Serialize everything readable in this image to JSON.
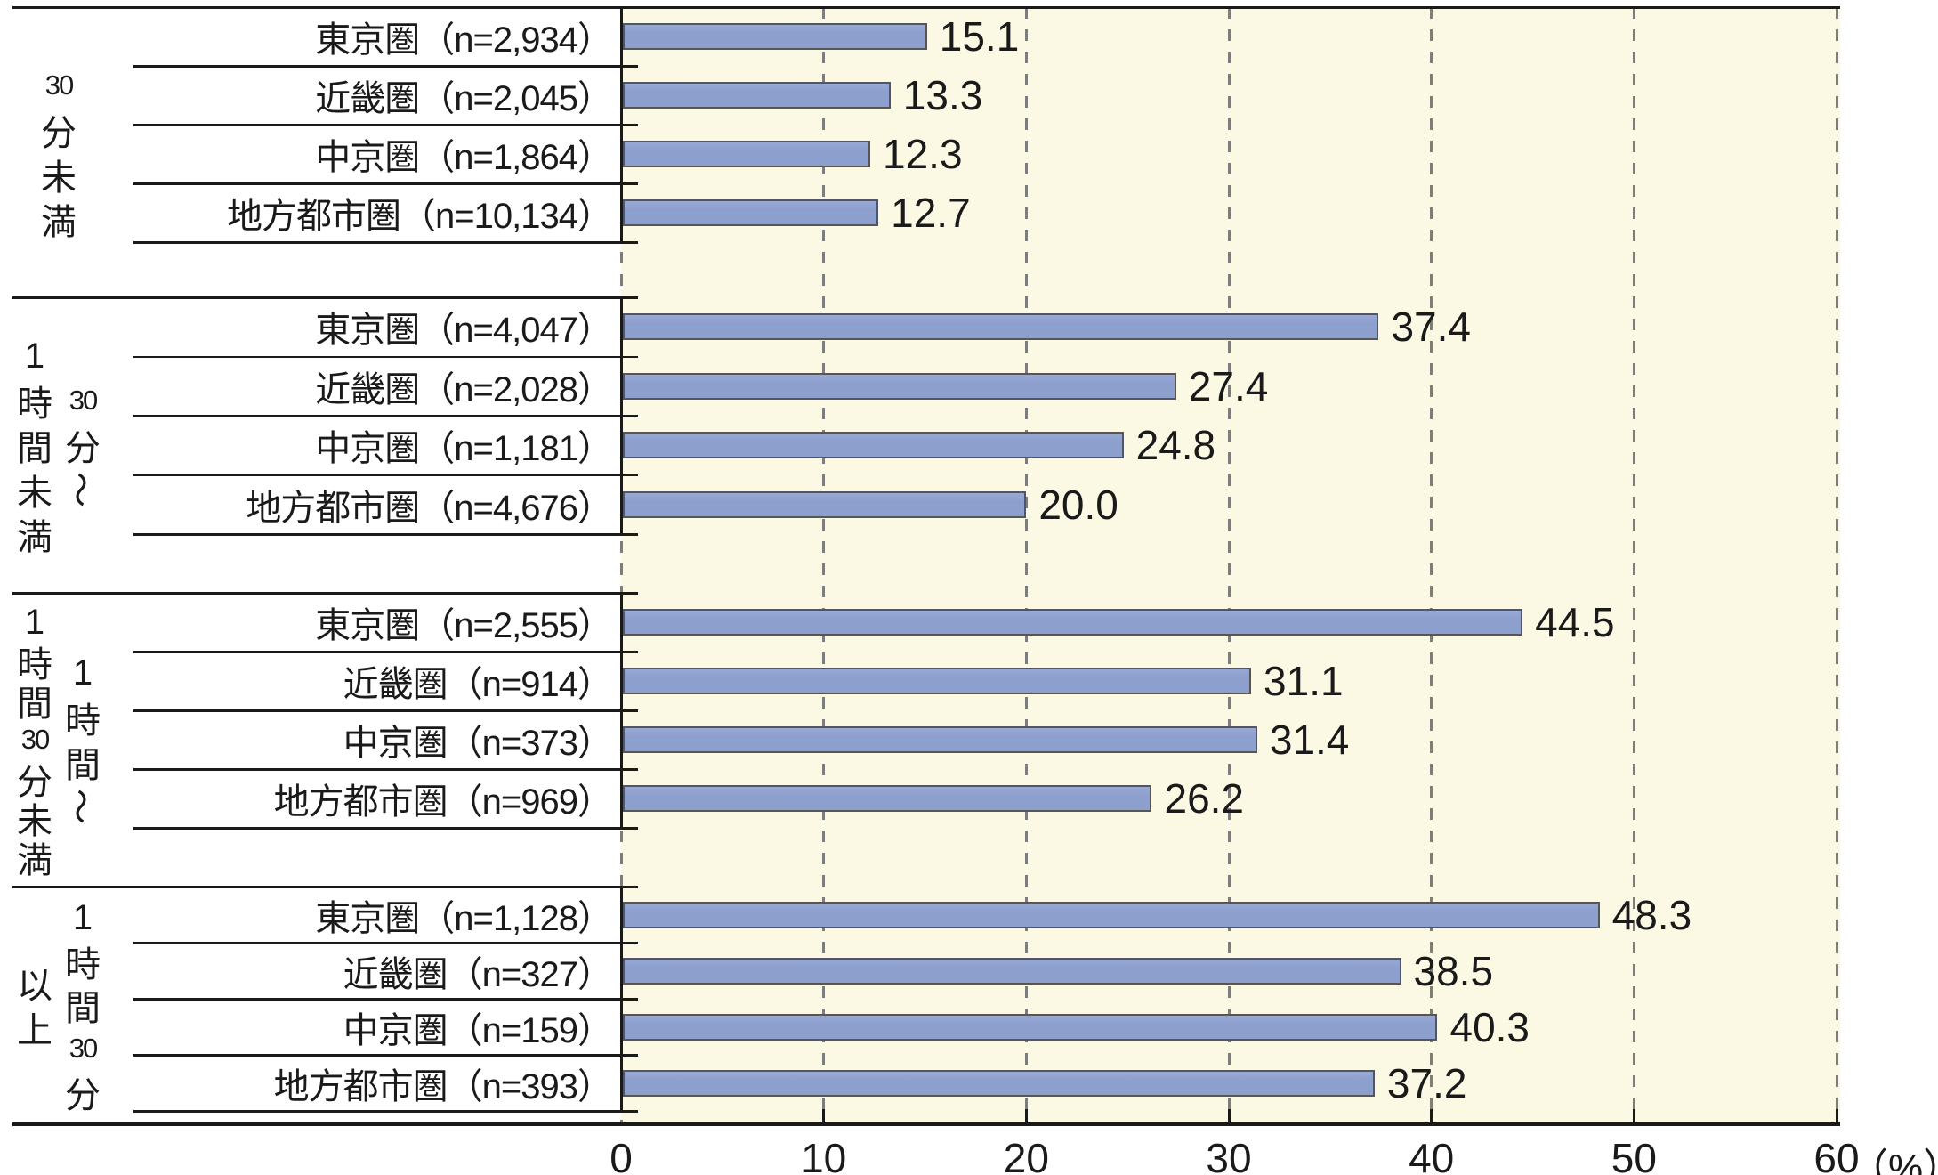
{
  "chart_data": {
    "type": "bar",
    "orientation": "horizontal",
    "title": "",
    "xlabel": "（%）",
    "xlim": [
      0,
      60
    ],
    "x_ticks": [
      0,
      10,
      20,
      30,
      40,
      50,
      60
    ],
    "grid": "vertical-dashed-every-10",
    "legend": "none",
    "groups": [
      {
        "label": "30分未満",
        "label_columns": [
          [
            "30",
            "分",
            "未",
            "満"
          ]
        ],
        "bars": [
          {
            "region": "東京圏",
            "label": "東京圏（n=2,934）",
            "value": 15.1,
            "value_label": "15.1"
          },
          {
            "region": "近畿圏",
            "label": "近畿圏（n=2,045）",
            "value": 13.3,
            "value_label": "13.3"
          },
          {
            "region": "中京圏",
            "label": "中京圏（n=1,864）",
            "value": 12.3,
            "value_label": "12.3"
          },
          {
            "region": "地方都市圏",
            "label": "地方都市圏（n=10,134）",
            "value": 12.7,
            "value_label": "12.7"
          }
        ]
      },
      {
        "label": "30分〜1時間未満",
        "label_columns": [
          [
            "1",
            "時",
            "間",
            "未",
            "満"
          ],
          [
            "30",
            "分",
            "〜"
          ]
        ],
        "bars": [
          {
            "region": "東京圏",
            "label": "東京圏（n=4,047）",
            "value": 37.4,
            "value_label": "37.4"
          },
          {
            "region": "近畿圏",
            "label": "近畿圏（n=2,028）",
            "value": 27.4,
            "value_label": "27.4"
          },
          {
            "region": "中京圏",
            "label": "中京圏（n=1,181）",
            "value": 24.8,
            "value_label": "24.8"
          },
          {
            "region": "地方都市圏",
            "label": "地方都市圏（n=4,676）",
            "value": 20.0,
            "value_label": "20.0"
          }
        ]
      },
      {
        "label": "1時間〜1時間30分未満",
        "label_columns": [
          [
            "1",
            "時",
            "間",
            "30",
            "分",
            "未",
            "満"
          ],
          [
            "1",
            "時",
            "間",
            "〜"
          ]
        ],
        "bars": [
          {
            "region": "東京圏",
            "label": "東京圏（n=2,555）",
            "value": 44.5,
            "value_label": "44.5"
          },
          {
            "region": "近畿圏",
            "label": "近畿圏（n=914）",
            "value": 31.1,
            "value_label": "31.1"
          },
          {
            "region": "中京圏",
            "label": "中京圏（n=373）",
            "value": 31.4,
            "value_label": "31.4"
          },
          {
            "region": "地方都市圏",
            "label": "地方都市圏（n=969）",
            "value": 26.2,
            "value_label": "26.2"
          }
        ]
      },
      {
        "label": "1時間30分以上",
        "label_columns": [
          [
            "以",
            "上"
          ],
          [
            "1",
            "時",
            "間",
            "30",
            "分"
          ]
        ],
        "bars": [
          {
            "region": "東京圏",
            "label": "東京圏（n=1,128）",
            "value": 48.3,
            "value_label": "48.3"
          },
          {
            "region": "近畿圏",
            "label": "近畿圏（n=327）",
            "value": 38.5,
            "value_label": "38.5"
          },
          {
            "region": "中京圏",
            "label": "中京圏（n=159）",
            "value": 40.3,
            "value_label": "40.3"
          },
          {
            "region": "地方都市圏",
            "label": "地方都市圏（n=393）",
            "value": 37.2,
            "value_label": "37.2"
          }
        ]
      }
    ],
    "axis": {
      "tick_labels": [
        "0",
        "10",
        "20",
        "30",
        "40",
        "50",
        "60"
      ],
      "unit_label": "（%）"
    },
    "colors": {
      "bar_fill": "#8d9fcd",
      "bar_border": "#54565c",
      "plot_bg": "#fbf9e4",
      "grid": "#7d7d7d",
      "line": "#1a1a1a",
      "text": "#1a1a1a",
      "background": "#ffffff"
    }
  }
}
